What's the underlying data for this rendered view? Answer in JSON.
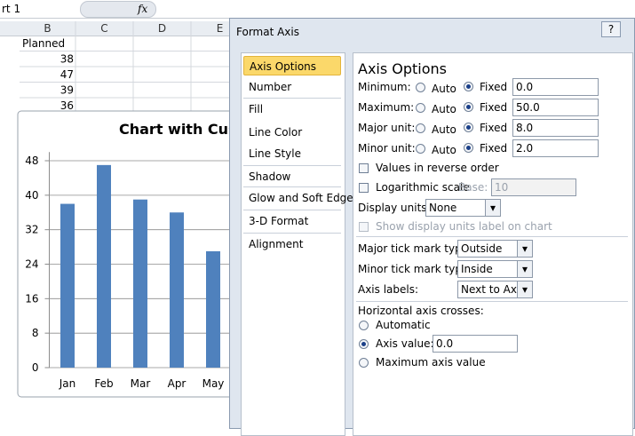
{
  "spreadsheet": {
    "name_box": "rt 1",
    "formula_icon": "fx",
    "columns": [
      "B",
      "C",
      "D",
      "E"
    ],
    "cells": [
      "Planned",
      38,
      47,
      39,
      36
    ]
  },
  "chart_data": {
    "type": "bar",
    "title": "Chart with Cust",
    "categories": [
      "Jan",
      "Feb",
      "Mar",
      "Apr",
      "May"
    ],
    "values": [
      38,
      47,
      39,
      36,
      27
    ],
    "color": "#4f81bd",
    "ylim": [
      0,
      50
    ],
    "yticks": [
      0,
      8,
      16,
      24,
      32,
      40,
      48
    ],
    "grid": true
  },
  "dialog": {
    "title": "Format Axis",
    "help": "?",
    "nav": [
      "Axis Options",
      "Number",
      "Fill",
      "Line Color",
      "Line Style",
      "Shadow",
      "Glow and Soft Edges",
      "3-D Format",
      "Alignment"
    ],
    "heading": "Axis Options",
    "bounds": [
      {
        "label": "Minimum:",
        "auto": "Auto",
        "fixed": "Fixed",
        "value": "0.0"
      },
      {
        "label": "Maximum:",
        "auto": "Auto",
        "fixed": "Fixed",
        "value": "50.0"
      },
      {
        "label": "Major unit:",
        "auto": "Auto",
        "fixed": "Fixed",
        "value": "8.0"
      },
      {
        "label": "Minor unit:",
        "auto": "Auto",
        "fixed": "Fixed",
        "value": "2.0"
      }
    ],
    "reverse": "Values in reverse order",
    "log": "Logarithmic scale",
    "base_label": "Base:",
    "base": "10",
    "display_units_label": "Display units:",
    "display_units": "None",
    "show_units": "Show display units label on chart",
    "major_tick_label": "Major tick mark type:",
    "major_tick": "Outside",
    "minor_tick_label": "Minor tick mark type:",
    "minor_tick": "Inside",
    "axis_labels_label": "Axis labels:",
    "axis_labels": "Next to Axis",
    "crosses_label": "Horizontal axis crosses:",
    "automatic": "Automatic",
    "axis_value_label": "Axis value:",
    "axis_value": "0.0",
    "maximum": "Maximum axis value"
  }
}
